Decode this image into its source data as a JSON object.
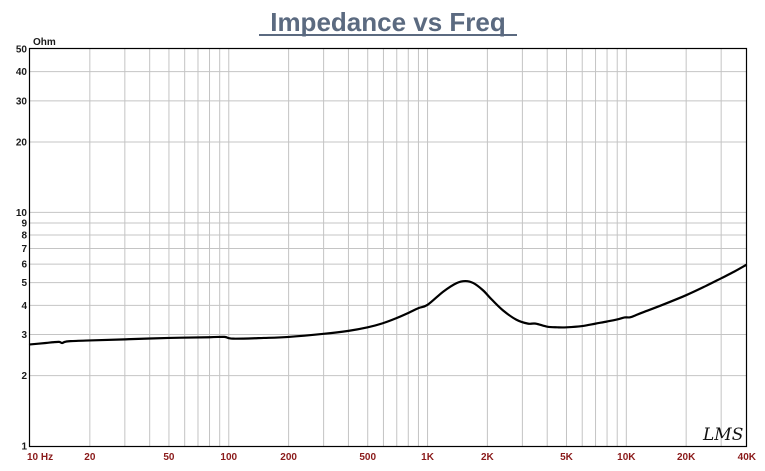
{
  "chart_data": {
    "type": "line",
    "title": "Impedance vs Freq",
    "ylabel": "Ohm",
    "xlabel": "",
    "x_scale": "log",
    "y_scale": "log",
    "xlim": [
      10,
      40000
    ],
    "ylim": [
      1,
      50
    ],
    "grid": true,
    "x_ticks": [
      {
        "value": 10,
        "label": "10 Hz"
      },
      {
        "value": 20,
        "label": "20"
      },
      {
        "value": 50,
        "label": "50"
      },
      {
        "value": 100,
        "label": "100"
      },
      {
        "value": 200,
        "label": "200"
      },
      {
        "value": 500,
        "label": "500"
      },
      {
        "value": 1000,
        "label": "1K"
      },
      {
        "value": 2000,
        "label": "2K"
      },
      {
        "value": 5000,
        "label": "5K"
      },
      {
        "value": 10000,
        "label": "10K"
      },
      {
        "value": 20000,
        "label": "20K"
      },
      {
        "value": 40000,
        "label": "40K"
      }
    ],
    "y_ticks": [
      {
        "value": 1,
        "label": "1"
      },
      {
        "value": 2,
        "label": "2"
      },
      {
        "value": 3,
        "label": "3"
      },
      {
        "value": 4,
        "label": "4"
      },
      {
        "value": 5,
        "label": "5"
      },
      {
        "value": 6,
        "label": "6"
      },
      {
        "value": 7,
        "label": "7"
      },
      {
        "value": 8,
        "label": "8"
      },
      {
        "value": 9,
        "label": "9"
      },
      {
        "value": 10,
        "label": "10"
      },
      {
        "value": 20,
        "label": "20"
      },
      {
        "value": 30,
        "label": "30"
      },
      {
        "value": 40,
        "label": "40"
      },
      {
        "value": 50,
        "label": "50"
      }
    ],
    "series": [
      {
        "color": "#000000",
        "x": [
          10,
          12,
          13,
          14,
          14.5,
          15,
          16,
          20,
          30,
          50,
          80,
          95,
          105,
          150,
          200,
          300,
          400,
          500,
          600,
          700,
          800,
          900,
          1000,
          1200,
          1400,
          1550,
          1700,
          1900,
          2100,
          2400,
          2800,
          3200,
          3500,
          4000,
          4500,
          5000,
          6000,
          7000,
          8000,
          9000,
          9800,
          10500,
          12000,
          15000,
          20000,
          25000,
          30000,
          35000,
          40000
        ],
        "y": [
          2.72,
          2.76,
          2.78,
          2.79,
          2.76,
          2.79,
          2.81,
          2.83,
          2.86,
          2.9,
          2.92,
          2.93,
          2.88,
          2.9,
          2.93,
          3.02,
          3.11,
          3.22,
          3.36,
          3.53,
          3.71,
          3.89,
          4.02,
          4.58,
          4.98,
          5.08,
          4.98,
          4.64,
          4.24,
          3.8,
          3.47,
          3.34,
          3.34,
          3.24,
          3.22,
          3.22,
          3.26,
          3.34,
          3.41,
          3.48,
          3.55,
          3.56,
          3.72,
          4.0,
          4.42,
          4.83,
          5.22,
          5.58,
          5.95
        ]
      }
    ]
  },
  "logo_text": "LMS"
}
